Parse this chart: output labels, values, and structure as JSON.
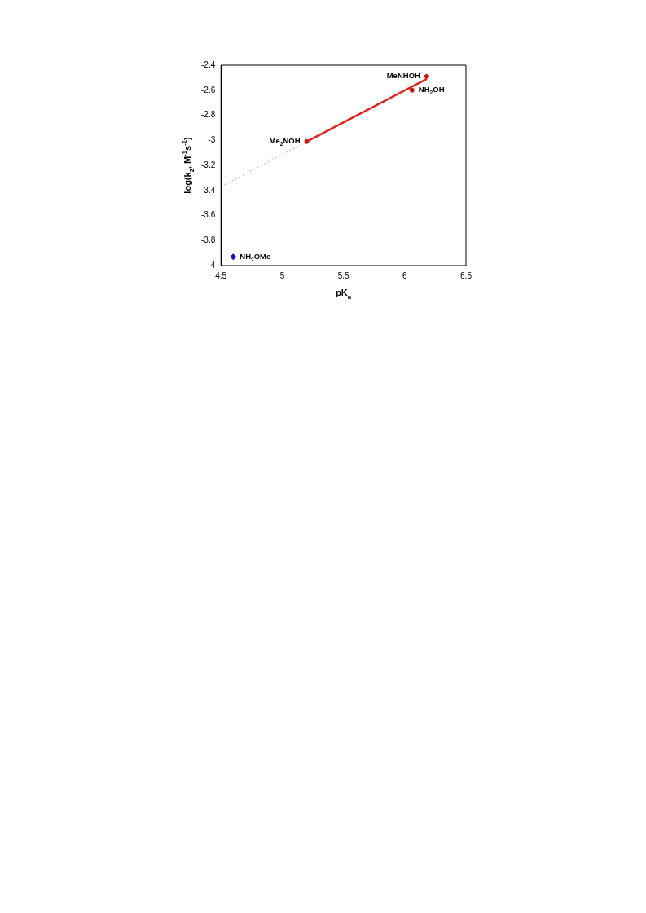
{
  "chart_data": {
    "type": "scatter",
    "xlabel": "pK$_{a}$",
    "ylabel": "log(k$_{2}$, M$^{-1}$s$^{-1}$)",
    "xlim": [
      4.5,
      6.5
    ],
    "xticks": [
      4.5,
      5,
      5.5,
      6,
      6.5
    ],
    "ylim": [
      -4,
      -2.4
    ],
    "yticks": [
      -4,
      -3.8,
      -3.6,
      -3.4,
      -3.2,
      -3,
      -2.8,
      -2.6,
      -2.4
    ],
    "grid": false,
    "legend": false,
    "series": [
      {
        "type": "line",
        "color": "#dd2222",
        "x": [
          5.2,
          6.18
        ],
        "values": [
          -3.01,
          -2.51
        ],
        "marker": "none",
        "line_style": "solid"
      },
      {
        "type": "line",
        "color": "#bbbbbb",
        "x": [
          4.5,
          5.2
        ],
        "values": [
          -3.37,
          -3.01
        ],
        "marker": "none",
        "line_style": "dotted"
      },
      {
        "type": "scatter",
        "color": "#cc1111",
        "x": [
          5.2,
          6.06,
          6.18
        ],
        "values": [
          -3.01,
          -2.6,
          -2.49
        ],
        "marker": "circle"
      },
      {
        "type": "scatter",
        "color": "#1111cc",
        "x": [
          4.6
        ],
        "values": [
          -3.93
        ],
        "marker": "diamond"
      }
    ],
    "annotations": [
      {
        "text": "Me$_{2}$NOH",
        "x": 5.2,
        "y": -3.01
      },
      {
        "text": "NH$_{2}$OH",
        "x": 6.06,
        "y": -2.6
      },
      {
        "text": "MeNHOH",
        "x": 6.18,
        "y": -2.49
      },
      {
        "text": "NH$_{2}$OMe",
        "x": 4.6,
        "y": -3.93
      }
    ]
  }
}
